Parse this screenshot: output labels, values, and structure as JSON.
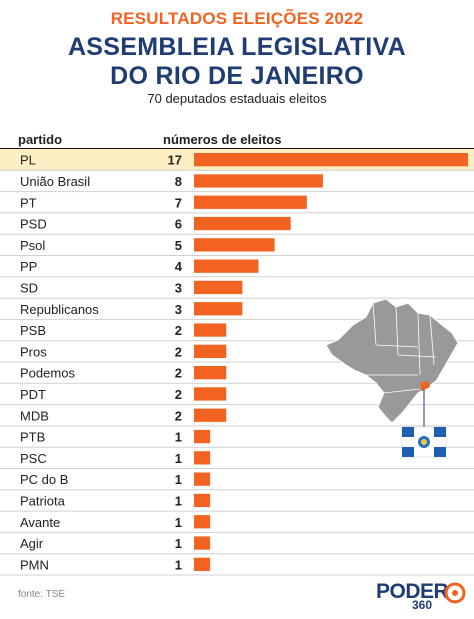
{
  "header": {
    "kicker": "RESULTADOS ELEIÇÕES 2022",
    "title_line1": "ASSEMBLEIA LEGISLATIVA",
    "title_line2": "DO RIO DE JANEIRO",
    "subtitle": "70 deputados estaduais eleitos"
  },
  "columns": {
    "party": "partido",
    "seats": "números de eleitos"
  },
  "source": "fonte: TSE",
  "logo": {
    "word": "PODER",
    "number": "360"
  },
  "colors": {
    "bar": "#f26322",
    "highlight_row": "#fdeec4",
    "title": "#1f3d73",
    "kicker": "#f26322"
  },
  "chart_data": {
    "type": "bar",
    "orientation": "horizontal",
    "xlim": [
      0,
      17
    ],
    "categories": [
      "PL",
      "União Brasil",
      "PT",
      "PSD",
      "Psol",
      "PP",
      "SD",
      "Republicanos",
      "PSB",
      "Pros",
      "Podemos",
      "PDT",
      "MDB",
      "PTB",
      "PSC",
      "PC do B",
      "Patriota",
      "Avante",
      "Agir",
      "PMN"
    ],
    "values": [
      17,
      8,
      7,
      6,
      5,
      4,
      3,
      3,
      2,
      2,
      2,
      2,
      2,
      1,
      1,
      1,
      1,
      1,
      1,
      1
    ],
    "highlighted_category": "PL"
  }
}
